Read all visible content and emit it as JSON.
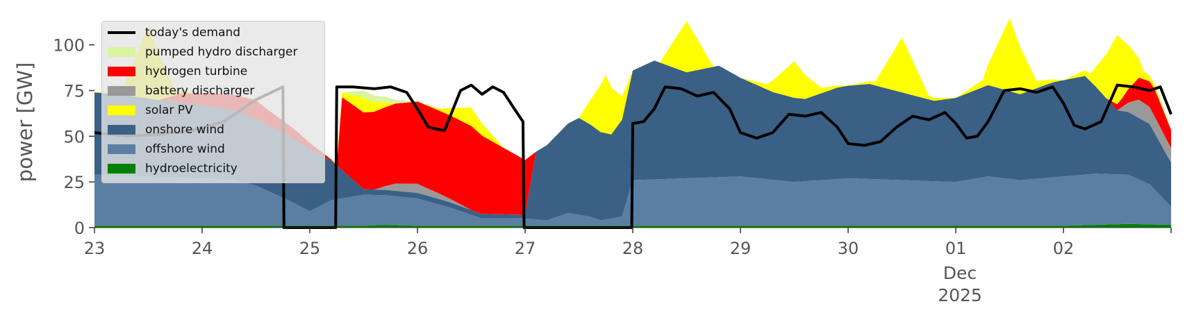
{
  "chart_data": {
    "type": "area",
    "ylabel": "power [GW]",
    "ylim": [
      0,
      120
    ],
    "yticks": [
      "0",
      "25",
      "50",
      "75",
      "100"
    ],
    "ytick_values": [
      0,
      25,
      50,
      75,
      100
    ],
    "xlim_days": [
      0,
      10
    ],
    "xticks": [
      {
        "day": 0,
        "label": "23"
      },
      {
        "day": 1,
        "label": "24"
      },
      {
        "day": 2,
        "label": "25"
      },
      {
        "day": 3,
        "label": "26"
      },
      {
        "day": 4,
        "label": "27"
      },
      {
        "day": 5,
        "label": "28"
      },
      {
        "day": 6,
        "label": "29"
      },
      {
        "day": 7,
        "label": "30"
      },
      {
        "day": 8,
        "label": "01"
      },
      {
        "day": 9,
        "label": "02"
      }
    ],
    "month_label": "Dec",
    "year_label": "2025",
    "grid": false,
    "legend_position": "top-left",
    "series": [
      {
        "name": "hydroelectricity",
        "color": "#008000",
        "x": [
          0,
          2.5,
          2.7,
          3,
          5,
          6,
          8,
          9,
          9.6,
          10
        ],
        "values": [
          1,
          1,
          1.5,
          1,
          1,
          1,
          1,
          1,
          2,
          1.5
        ]
      },
      {
        "name": "offshore wind",
        "color": "#5b7fa3",
        "x": [
          0,
          0.5,
          1,
          1.3,
          1.5,
          1.8,
          2,
          2.2,
          2.5,
          3,
          3.3,
          3.6,
          4,
          4.2,
          4.4,
          4.6,
          4.7,
          4.8,
          4.9,
          5,
          5.5,
          6,
          6.5,
          7,
          7.5,
          8,
          8.3,
          8.6,
          9,
          9.3,
          9.6,
          9.8,
          10
        ],
        "values": [
          28,
          27,
          26,
          25,
          22,
          14,
          8,
          14,
          17,
          15,
          10,
          4,
          4,
          3,
          7,
          5,
          3,
          4,
          5,
          25,
          26,
          27,
          24,
          26,
          25,
          24,
          27,
          25,
          27,
          28,
          27,
          22,
          10
        ]
      },
      {
        "name": "onshore wind",
        "color": "#3a6085",
        "x": [
          0,
          0.3,
          0.6,
          1,
          1.3,
          1.6,
          1.9,
          2,
          2.5,
          2.9,
          3.2,
          4,
          4.1,
          4.3,
          4.5,
          4.8,
          5,
          5.2,
          5.5,
          5.8,
          6,
          6.3,
          6.6,
          6.9,
          7.2,
          7.5,
          7.8,
          8,
          8.3,
          8.6,
          8.9,
          9.2,
          9.5,
          9.8,
          10
        ],
        "values": [
          45,
          44,
          42,
          40,
          38,
          36,
          35,
          34,
          3,
          3,
          3,
          2,
          37,
          45,
          53,
          46,
          60,
          65,
          58,
          61,
          54,
          48,
          45,
          50,
          52,
          48,
          44,
          46,
          50,
          47,
          52,
          54,
          35,
          33,
          24
        ]
      },
      {
        "name": "battery discharger",
        "color": "#999999",
        "x": [
          0,
          2.6,
          2.8,
          3,
          3.5,
          9.5,
          9.7,
          10
        ],
        "values": [
          0,
          0,
          4,
          5,
          0,
          0,
          10,
          8
        ]
      },
      {
        "name": "hydrogen turbine",
        "color": "#ff0000",
        "x": [
          0,
          0.2,
          0.6,
          0.8,
          1.2,
          1.5,
          2.25,
          2.3,
          2.5,
          3,
          3.5,
          4,
          4.1,
          9.4,
          9.55,
          9.7,
          9.85,
          10
        ],
        "values": [
          0,
          0,
          0,
          5,
          8,
          10,
          0,
          40,
          42,
          45,
          46,
          30,
          0,
          0,
          5,
          12,
          15,
          10
        ]
      },
      {
        "name": "solar PV",
        "color": "#ffff00",
        "x": [
          0,
          0.25,
          0.5,
          0.75,
          1,
          2.2,
          2.5,
          2.8,
          3,
          3.2,
          3.5,
          3.8,
          4,
          4.5,
          4.75,
          5,
          5.25,
          5.5,
          5.75,
          6,
          6.25,
          6.5,
          6.75,
          7,
          7.25,
          7.5,
          7.75,
          8,
          8.25,
          8.5,
          8.75,
          9,
          9.25,
          9.5,
          9.75,
          10
        ],
        "values": [
          0,
          2,
          40,
          2,
          0,
          0,
          8,
          0,
          0,
          1,
          10,
          0,
          0,
          0,
          32,
          0,
          0,
          28,
          0,
          0,
          3,
          20,
          3,
          0,
          2,
          30,
          2,
          0,
          4,
          40,
          4,
          0,
          4,
          38,
          4,
          0
        ]
      },
      {
        "name": "pumped hydro discharger",
        "color": "#d9f5a0",
        "x": [
          0,
          2.3,
          2.5,
          2.7,
          3,
          3.3,
          10
        ],
        "values": [
          0,
          0,
          4,
          3,
          0,
          0,
          0
        ]
      }
    ],
    "demand": {
      "name": "today's demand",
      "color": "#000000",
      "x": [
        0,
        0.3,
        0.6,
        0.9,
        1.2,
        1.5,
        1.75,
        1.76,
        2.24,
        2.25,
        2.4,
        2.6,
        2.75,
        2.9,
        3,
        3.1,
        3.25,
        3.4,
        3.5,
        3.6,
        3.7,
        3.8,
        3.9,
        3.98,
        3.99,
        4.99,
        5,
        5.1,
        5.2,
        5.3,
        5.45,
        5.6,
        5.75,
        5.9,
        6.0,
        6.15,
        6.3,
        6.45,
        6.6,
        6.75,
        6.9,
        7.0,
        7.15,
        7.3,
        7.45,
        7.6,
        7.75,
        7.9,
        8.0,
        8.1,
        8.2,
        8.3,
        8.45,
        8.6,
        8.75,
        8.9,
        9.0,
        9.1,
        9.2,
        9.35,
        9.5,
        9.65,
        9.8,
        9.9,
        10
      ],
      "values": [
        52,
        50,
        51,
        53,
        58,
        70,
        77,
        0,
        0,
        77,
        77,
        76,
        77,
        74,
        65,
        55,
        53,
        75,
        78,
        73,
        77,
        74,
        65,
        58,
        0,
        0,
        57,
        58,
        65,
        77,
        76,
        72,
        74,
        65,
        52,
        49,
        52,
        62,
        61,
        63,
        55,
        46,
        45,
        47,
        55,
        61,
        59,
        63,
        57,
        49,
        50,
        58,
        75,
        76,
        74,
        77,
        68,
        56,
        54,
        58,
        78,
        77,
        75,
        77,
        62
      ]
    }
  }
}
